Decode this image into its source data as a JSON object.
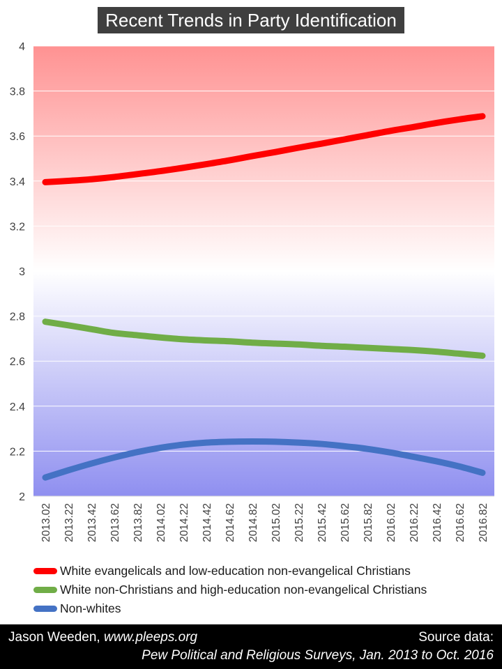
{
  "chart_data": {
    "type": "line",
    "title": "Recent Trends in Party Identification",
    "xlabel": "",
    "ylabel": "",
    "ylim": [
      2,
      4
    ],
    "yticks": [
      2,
      2.2,
      2.4,
      2.6,
      2.8,
      3,
      3.2,
      3.4,
      3.6,
      3.8,
      4
    ],
    "ytick_labels": [
      "2",
      "2.2",
      "2.4",
      "2.6",
      "2.8",
      "3",
      "3.2",
      "3.4",
      "3.6",
      "3.8",
      "4"
    ],
    "x": [
      "2013.02",
      "2013.22",
      "2013.42",
      "2013.62",
      "2013.82",
      "2014.02",
      "2014.22",
      "2014.42",
      "2014.62",
      "2014.82",
      "2015.02",
      "2015.22",
      "2015.42",
      "2015.62",
      "2015.82",
      "2016.02",
      "2016.22",
      "2016.42",
      "2016.62",
      "2016.82"
    ],
    "grid": true,
    "background": "red-to-blue vertical gradient",
    "legend_position": "bottom",
    "series": [
      {
        "name": "White evangelicals and low-education non-evangelical Christians",
        "color": "#ff0000",
        "values": [
          3.395,
          3.401,
          3.408,
          3.418,
          3.431,
          3.444,
          3.459,
          3.475,
          3.492,
          3.511,
          3.529,
          3.548,
          3.566,
          3.585,
          3.604,
          3.623,
          3.64,
          3.658,
          3.674,
          3.688
        ]
      },
      {
        "name": "White non-Christians and high-education non-evangelical Christians",
        "color": "#70ad47",
        "values": [
          2.775,
          2.759,
          2.742,
          2.725,
          2.715,
          2.705,
          2.697,
          2.692,
          2.688,
          2.682,
          2.678,
          2.674,
          2.668,
          2.664,
          2.659,
          2.654,
          2.649,
          2.642,
          2.633,
          2.624
        ]
      },
      {
        "name": "Non-whites",
        "color": "#4472c4",
        "values": [
          2.083,
          2.115,
          2.145,
          2.172,
          2.196,
          2.215,
          2.229,
          2.238,
          2.242,
          2.243,
          2.242,
          2.238,
          2.232,
          2.222,
          2.21,
          2.194,
          2.175,
          2.155,
          2.132,
          2.104
        ]
      }
    ]
  },
  "footer": {
    "author_name": "Jason Weeden, ",
    "author_site": "www.pleeps.org",
    "source_label": "Source data:",
    "source_text": "Pew Political and Religious Surveys, Jan. 2013 to Oct. 2016"
  }
}
